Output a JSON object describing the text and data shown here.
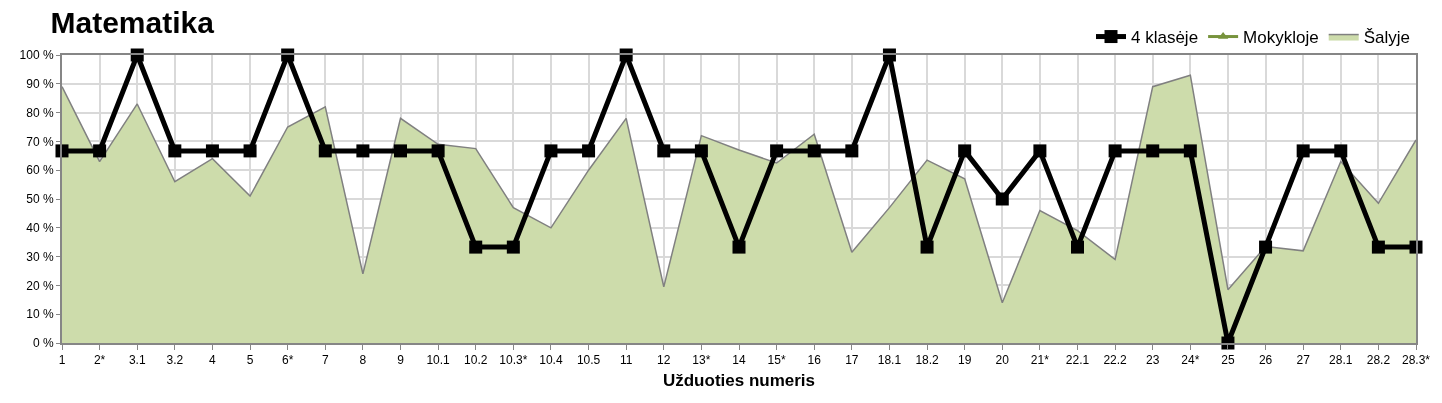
{
  "chart_data": {
    "type": "line",
    "title": "Matematika",
    "xlabel": "Užduoties numeris",
    "categories": [
      "1",
      "2*",
      "3.1",
      "3.2",
      "4",
      "5",
      "6*",
      "7",
      "8",
      "9",
      "10.1",
      "10.2",
      "10.3*",
      "10.4",
      "10.5",
      "11",
      "12",
      "13*",
      "14",
      "15*",
      "16",
      "17",
      "18.1",
      "18.2",
      "19",
      "20",
      "21*",
      "22.1",
      "22.2",
      "23",
      "24*",
      "25",
      "26",
      "27",
      "28.1",
      "28.2",
      "28.3*"
    ],
    "series": [
      {
        "name": "Šalyje",
        "type": "area",
        "color": "#cddcab",
        "values": [
          89,
          63,
          83,
          56,
          64,
          51,
          75,
          82,
          24,
          78,
          69,
          67.5,
          47,
          40,
          60,
          78,
          19.5,
          72,
          67,
          62.5,
          72.5,
          31.5,
          47,
          63.5,
          57,
          14,
          46,
          39,
          29,
          89,
          93,
          18.5,
          33.5,
          32,
          63,
          48.5,
          70.5
        ]
      },
      {
        "name": "Mokykloje",
        "color": "#77933c",
        "marker": "triangle",
        "values": [
          null,
          null,
          null,
          null,
          null,
          null,
          null,
          null,
          null,
          null,
          null,
          null,
          null,
          null,
          null,
          null,
          null,
          null,
          null,
          null,
          null,
          null,
          null,
          null,
          null,
          null,
          null,
          null,
          null,
          null,
          null,
          null,
          null,
          null,
          null,
          null,
          null
        ]
      },
      {
        "name": "4 klasėje",
        "color": "#000000",
        "marker": "square",
        "values": [
          66.7,
          66.7,
          100,
          66.7,
          66.7,
          66.7,
          100,
          66.7,
          66.7,
          66.7,
          66.7,
          33.3,
          33.3,
          66.7,
          66.7,
          100,
          66.7,
          66.7,
          33.3,
          66.7,
          66.7,
          66.7,
          100,
          33.3,
          66.7,
          50,
          66.7,
          33.3,
          66.7,
          66.7,
          66.7,
          0,
          33.3,
          66.7,
          66.7,
          33.3,
          33.3
        ]
      }
    ],
    "ylim": [
      0,
      100
    ],
    "yticks": [
      {
        "value": 0,
        "label": "0 %"
      },
      {
        "value": 10,
        "label": "10 %"
      },
      {
        "value": 20,
        "label": "20 %"
      },
      {
        "value": 30,
        "label": "30 %"
      },
      {
        "value": 40,
        "label": "40 %"
      },
      {
        "value": 50,
        "label": "50 %"
      },
      {
        "value": 60,
        "label": "60 %"
      },
      {
        "value": 70,
        "label": "70 %"
      },
      {
        "value": 80,
        "label": "80 %"
      },
      {
        "value": 90,
        "label": "90 %"
      },
      {
        "value": 100,
        "label": "100 %"
      }
    ],
    "grid": true,
    "legend": "top right"
  }
}
